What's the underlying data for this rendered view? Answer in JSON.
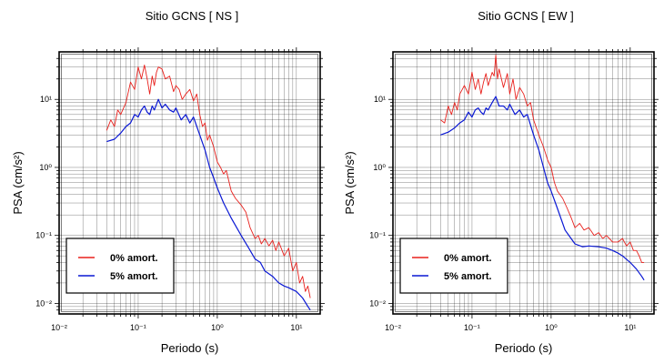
{
  "chart_data": [
    {
      "type": "line",
      "title": "Sitio GCNS [ NS ]",
      "xlabel": "Periodo (s)",
      "ylabel": "PSA (cm/s²)",
      "xscale": "log",
      "yscale": "log",
      "xlim": [
        0.01,
        20
      ],
      "ylim": [
        0.007,
        50
      ],
      "grid": true,
      "legend_position": "bottom-left",
      "x_tick_labels": [
        "10⁻²",
        "10⁻¹",
        "10⁰",
        "10¹"
      ],
      "y_tick_labels": [
        "10⁻²",
        "10⁻¹",
        "10⁰",
        "10¹"
      ],
      "series": [
        {
          "name": "0% amort.",
          "color": "#e8201c",
          "x": [
            0.04,
            0.045,
            0.05,
            0.055,
            0.06,
            0.07,
            0.08,
            0.09,
            0.1,
            0.11,
            0.12,
            0.13,
            0.14,
            0.15,
            0.16,
            0.17,
            0.18,
            0.2,
            0.22,
            0.25,
            0.28,
            0.3,
            0.33,
            0.36,
            0.4,
            0.45,
            0.5,
            0.55,
            0.6,
            0.65,
            0.7,
            0.75,
            0.8,
            0.9,
            1.0,
            1.1,
            1.2,
            1.3,
            1.5,
            1.7,
            2.0,
            2.3,
            2.6,
            3.0,
            3.3,
            3.6,
            4.0,
            4.5,
            5.0,
            5.5,
            6.0,
            7.0,
            8.0,
            9.0,
            10.0,
            11.0,
            12.0,
            13.0,
            14.0,
            15.0
          ],
          "y": [
            3.5,
            5.0,
            4.0,
            7.0,
            6.0,
            9.0,
            18.0,
            14.0,
            30.0,
            20.0,
            32.0,
            20.0,
            12.0,
            22.0,
            16.0,
            25.0,
            30.0,
            28.0,
            20.0,
            22.0,
            13.0,
            16.0,
            14.0,
            10.0,
            12.0,
            14.0,
            9.5,
            12.0,
            6.0,
            4.0,
            4.5,
            2.5,
            3.0,
            2.0,
            1.2,
            1.0,
            0.8,
            0.9,
            0.45,
            0.35,
            0.28,
            0.22,
            0.13,
            0.09,
            0.1,
            0.075,
            0.09,
            0.07,
            0.085,
            0.06,
            0.08,
            0.05,
            0.065,
            0.03,
            0.04,
            0.02,
            0.025,
            0.015,
            0.018,
            0.012
          ]
        },
        {
          "name": "5% amort.",
          "color": "#0a18d4",
          "x": [
            0.04,
            0.05,
            0.06,
            0.07,
            0.08,
            0.09,
            0.1,
            0.11,
            0.12,
            0.13,
            0.14,
            0.15,
            0.16,
            0.18,
            0.2,
            0.22,
            0.25,
            0.28,
            0.3,
            0.35,
            0.4,
            0.45,
            0.5,
            0.6,
            0.7,
            0.8,
            0.9,
            1.0,
            1.2,
            1.5,
            2.0,
            2.5,
            3.0,
            3.5,
            4.0,
            5.0,
            6.0,
            7.0,
            8.0,
            10.0,
            12.0,
            14.0,
            15.0
          ],
          "y": [
            2.4,
            2.6,
            3.2,
            4.0,
            4.5,
            6.0,
            5.5,
            7.0,
            8.0,
            6.5,
            6.0,
            8.0,
            7.0,
            10.0,
            7.5,
            8.5,
            7.0,
            6.5,
            7.5,
            5.0,
            6.0,
            4.5,
            5.5,
            3.0,
            1.8,
            1.0,
            0.7,
            0.5,
            0.3,
            0.18,
            0.1,
            0.065,
            0.045,
            0.04,
            0.03,
            0.025,
            0.02,
            0.018,
            0.017,
            0.015,
            0.012,
            0.009,
            0.008
          ]
        }
      ]
    },
    {
      "type": "line",
      "title": "Sitio GCNS [ EW ]",
      "xlabel": "Periodo (s)",
      "ylabel": "PSA (cm/s²)",
      "xscale": "log",
      "yscale": "log",
      "xlim": [
        0.01,
        20
      ],
      "ylim": [
        0.007,
        50
      ],
      "grid": true,
      "legend_position": "bottom-left",
      "x_tick_labels": [
        "10⁻²",
        "10⁻¹",
        "10⁰",
        "10¹"
      ],
      "y_tick_labels": [
        "10⁻²",
        "10⁻¹",
        "10⁰",
        "10¹"
      ],
      "series": [
        {
          "name": "0% amort.",
          "color": "#e8201c",
          "x": [
            0.04,
            0.045,
            0.05,
            0.055,
            0.06,
            0.065,
            0.07,
            0.08,
            0.09,
            0.1,
            0.11,
            0.12,
            0.13,
            0.14,
            0.15,
            0.16,
            0.18,
            0.19,
            0.2,
            0.21,
            0.22,
            0.25,
            0.28,
            0.3,
            0.33,
            0.36,
            0.4,
            0.45,
            0.5,
            0.55,
            0.6,
            0.7,
            0.8,
            0.9,
            1.0,
            1.1,
            1.2,
            1.4,
            1.6,
            1.8,
            2.0,
            2.3,
            2.6,
            3.0,
            3.5,
            4.0,
            4.5,
            5.0,
            6.0,
            7.0,
            8.0,
            9.0,
            10.0,
            11.0,
            12.0,
            13.0,
            14.0,
            15.0
          ],
          "y": [
            5.0,
            4.5,
            8.0,
            6.0,
            9.0,
            7.0,
            12.0,
            16.0,
            12.0,
            25.0,
            14.0,
            20.0,
            12.0,
            18.0,
            24.0,
            16.0,
            25.0,
            22.0,
            45.0,
            20.0,
            28.0,
            15.0,
            24.0,
            12.0,
            20.0,
            10.0,
            15.0,
            12.0,
            8.0,
            9.0,
            5.0,
            3.0,
            2.0,
            1.3,
            1.0,
            0.6,
            0.45,
            0.35,
            0.25,
            0.18,
            0.13,
            0.15,
            0.12,
            0.13,
            0.1,
            0.11,
            0.09,
            0.1,
            0.08,
            0.08,
            0.09,
            0.07,
            0.08,
            0.06,
            0.06,
            0.05,
            0.04,
            0.04
          ]
        },
        {
          "name": "5% amort.",
          "color": "#0a18d4",
          "x": [
            0.04,
            0.05,
            0.06,
            0.07,
            0.08,
            0.09,
            0.1,
            0.11,
            0.12,
            0.13,
            0.14,
            0.15,
            0.16,
            0.18,
            0.2,
            0.22,
            0.25,
            0.28,
            0.3,
            0.35,
            0.4,
            0.45,
            0.5,
            0.6,
            0.7,
            0.8,
            0.9,
            1.0,
            1.2,
            1.5,
            2.0,
            2.5,
            3.0,
            4.0,
            5.0,
            6.0,
            7.0,
            8.0,
            10.0,
            12.0,
            14.0,
            15.0
          ],
          "y": [
            3.0,
            3.3,
            3.8,
            4.5,
            5.0,
            6.5,
            5.5,
            7.0,
            7.5,
            6.5,
            6.0,
            7.5,
            7.0,
            9.0,
            11.0,
            8.0,
            8.0,
            7.0,
            8.5,
            6.0,
            7.0,
            5.5,
            6.0,
            3.0,
            1.8,
            1.0,
            0.6,
            0.45,
            0.25,
            0.12,
            0.075,
            0.068,
            0.07,
            0.068,
            0.065,
            0.06,
            0.055,
            0.05,
            0.04,
            0.032,
            0.025,
            0.022
          ]
        }
      ]
    }
  ]
}
